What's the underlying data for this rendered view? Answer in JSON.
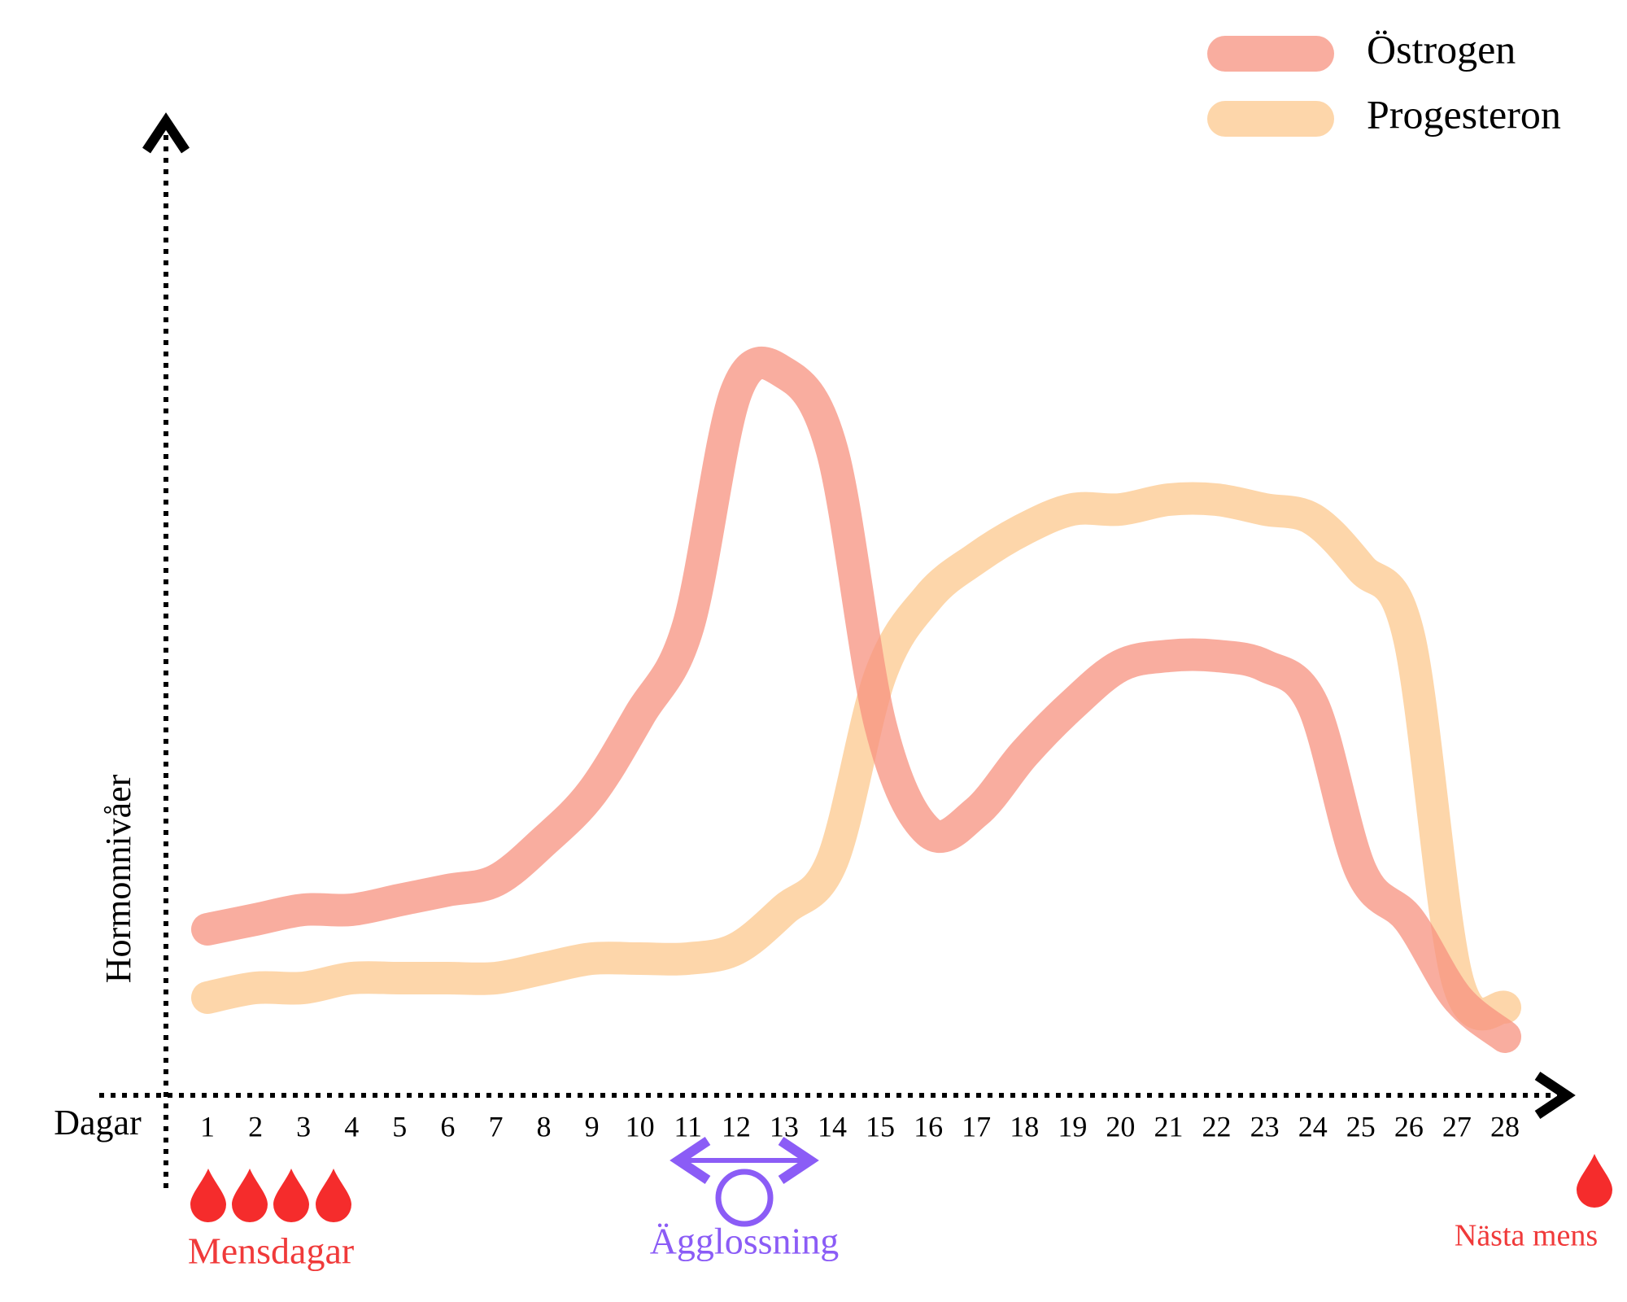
{
  "chart_data": {
    "type": "line",
    "y_label": "Hormonnivåer",
    "x_label": "Dagar",
    "categories": [
      "1",
      "2",
      "3",
      "4",
      "5",
      "6",
      "7",
      "8",
      "9",
      "10",
      "11",
      "12",
      "13",
      "14",
      "15",
      "16",
      "17",
      "18",
      "19",
      "20",
      "21",
      "22",
      "23",
      "24",
      "25",
      "26",
      "27",
      "28"
    ],
    "series": [
      {
        "name": "Östrogen",
        "color": "#f7917f",
        "values": [
          17,
          18,
          19,
          19,
          20,
          21,
          22,
          26,
          31,
          39,
          48,
          72,
          74,
          66,
          38,
          27,
          29,
          35,
          40,
          44,
          45,
          45,
          44,
          40,
          23,
          18,
          10,
          6
        ]
      },
      {
        "name": "Progesteron",
        "color": "#fcc88e",
        "values": [
          10,
          11,
          11,
          12,
          12,
          12,
          12,
          13,
          14,
          14,
          14,
          15,
          19,
          24,
          43,
          51,
          55,
          58,
          60,
          60,
          61,
          61,
          60,
          59,
          54,
          47,
          12,
          9
        ]
      }
    ],
    "ylim": [
      0,
      100
    ],
    "annotations": {
      "menstruation": "Mensdagar",
      "ovulation": "Ägglossning",
      "next_period": "Nästa mens"
    }
  }
}
